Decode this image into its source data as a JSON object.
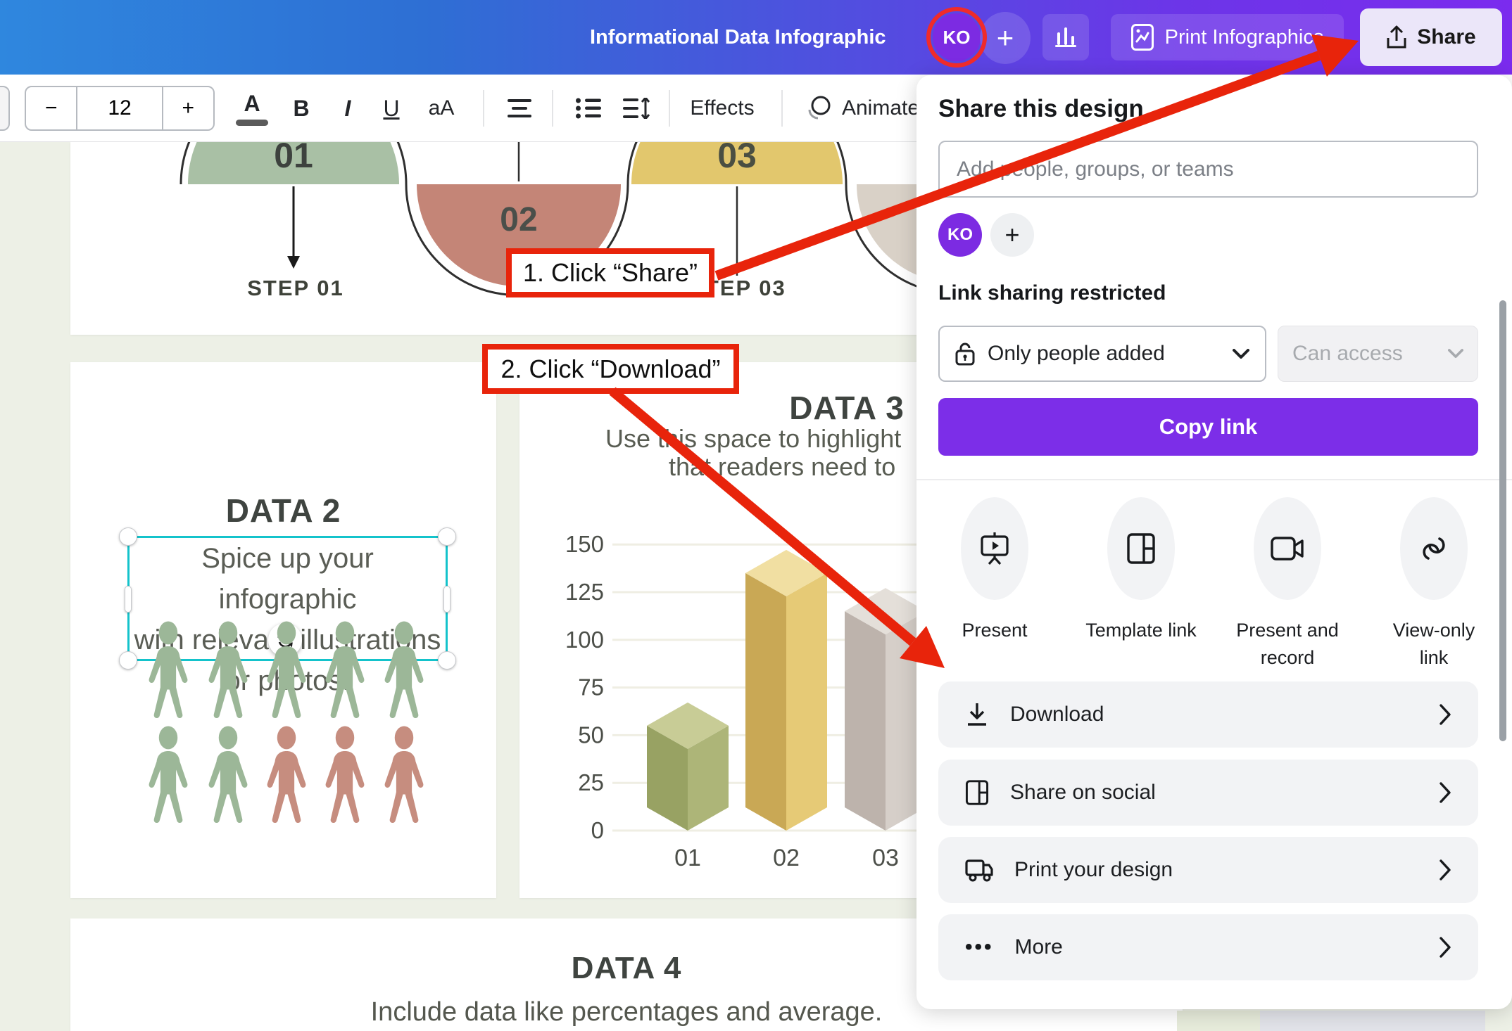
{
  "topbar": {
    "title": "Informational Data Infographic",
    "avatar": "KO",
    "plus_label": "+",
    "print_button": "Print Infographics",
    "share_button": "Share"
  },
  "toolbar": {
    "font_size": "12",
    "minus": "−",
    "plus": "+",
    "color_label": "A",
    "bold": "B",
    "italic": "I",
    "underline": "U",
    "case_label": "aA",
    "effects": "Effects",
    "animate": "Animate"
  },
  "canvas": {
    "steps": {
      "step1_num": "01",
      "step2_num": "02",
      "step3_num": "03",
      "step1_label": "STEP 01",
      "step3_label": "STEP 03",
      "colors": {
        "step1": "#a9c0a5",
        "step2": "#c48577",
        "step3": "#e2c76d",
        "step4": "#d9d1c7"
      }
    },
    "data2": {
      "heading": "DATA 2",
      "text_line1": "Spice up your infographic",
      "text_line2": "with relevant illustrations",
      "text_line3": "or photos.",
      "people_row1": [
        "green",
        "green",
        "green",
        "green",
        "green"
      ],
      "people_row2": [
        "green",
        "green",
        "rose",
        "rose",
        "rose"
      ],
      "people_colors": {
        "green": "#9cb798",
        "rose": "#c68d7f"
      },
      "selection_color": "#14c3cb"
    },
    "data3": {
      "heading": "DATA 3",
      "subtitle_line1": "Use this space to highlight",
      "subtitle_line2": "that readers need to "
    },
    "data4": {
      "heading": "DATA 4",
      "subtitle": "Include data like percentages and average."
    }
  },
  "chart_data": {
    "type": "bar",
    "categories": [
      "01",
      "02",
      "03"
    ],
    "values": [
      55,
      135,
      115
    ],
    "title": "DATA 3",
    "xlabel": "",
    "ylabel": "",
    "ylim": [
      0,
      150
    ],
    "yticks": [
      0,
      25,
      50,
      75,
      100,
      125,
      150
    ],
    "grid": true,
    "legend": false,
    "style": "3d-diamond-bars",
    "bar_colors": [
      {
        "left": "#98a263",
        "right": "#adb578",
        "top": "#c8cc96"
      },
      {
        "left": "#c9a855",
        "right": "#e6ca76",
        "top": "#f1dfa2"
      },
      {
        "left": "#bdb3ac",
        "right": "#d6cfc9",
        "top": "#e4dfd9"
      }
    ]
  },
  "annotations": {
    "step1": "1. Click “Share”",
    "step2": "2. Click “Download”",
    "red": "#e8240b"
  },
  "share_panel": {
    "heading": "Share this design",
    "input_placeholder": "Add people, groups, or teams",
    "avatar": "KO",
    "plus_label": "+",
    "link_sharing": "Link sharing restricted",
    "access_dropdown": "Only people added",
    "permission_dropdown": "Can access",
    "copy_link": "Copy link",
    "quick_actions": [
      {
        "label": "Present"
      },
      {
        "label": "Template link"
      },
      {
        "label": "Present and record"
      },
      {
        "label": "View-only link"
      }
    ],
    "rows": [
      {
        "label": "Download"
      },
      {
        "label": "Share on social"
      },
      {
        "label": "Print your design"
      },
      {
        "label": "More"
      }
    ],
    "accent": "#7c2ee8"
  }
}
